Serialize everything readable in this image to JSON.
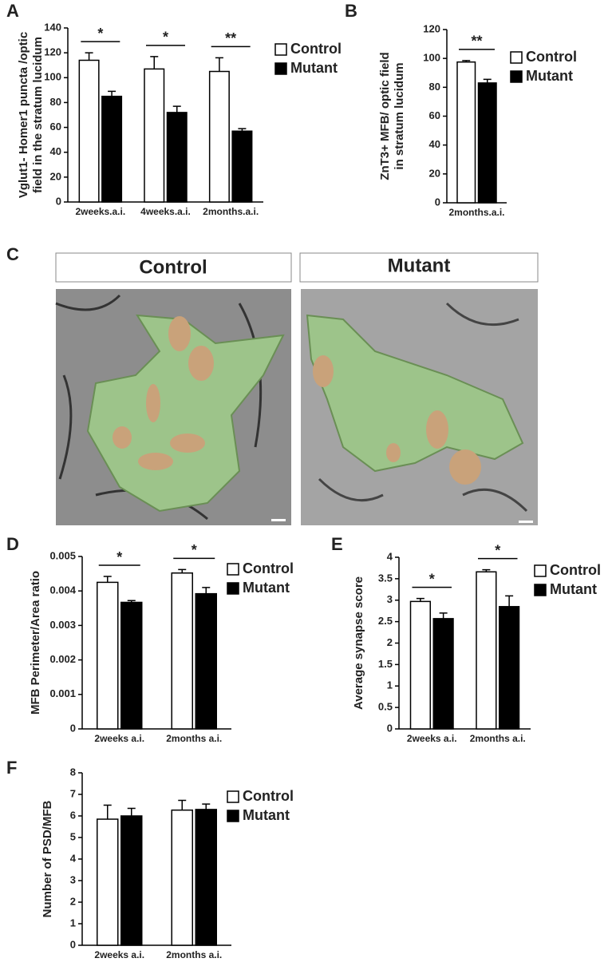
{
  "chart_data": [
    {
      "type": "bar",
      "panel": "A",
      "ylabel": [
        "Vglut1- Homer1 puncta /optic",
        "field  in the stratum lucidum"
      ],
      "categories": [
        "2weeks.a.i.",
        "4weeks.a.i.",
        "2months.a.i."
      ],
      "series": [
        {
          "name": "Control",
          "color": "#ffffff",
          "values": [
            114,
            107,
            105
          ],
          "errors": [
            6,
            10,
            11
          ]
        },
        {
          "name": "Mutant",
          "color": "#000000",
          "values": [
            85,
            72,
            57
          ],
          "errors": [
            4,
            5,
            2
          ]
        }
      ],
      "significance": [
        "*",
        "*",
        "**"
      ],
      "ylim": [
        0,
        140
      ],
      "yticks": [
        0,
        20,
        40,
        60,
        80,
        100,
        120,
        140
      ]
    },
    {
      "type": "bar",
      "panel": "B",
      "ylabel": [
        "ZnT3+ MFB/ optic field",
        "in stratum lucidum"
      ],
      "categories": [
        "2months.a.i."
      ],
      "series": [
        {
          "name": "Control",
          "color": "#ffffff",
          "values": [
            97.5
          ],
          "errors": [
            1
          ]
        },
        {
          "name": "Mutant",
          "color": "#000000",
          "values": [
            83
          ],
          "errors": [
            2.5
          ]
        }
      ],
      "significance": [
        "**"
      ],
      "ylim": [
        0,
        120
      ],
      "yticks": [
        0,
        20,
        40,
        60,
        80,
        100,
        120
      ]
    },
    {
      "type": "bar",
      "panel": "D",
      "ylabel": [
        "MFB Perimeter/Area ratio"
      ],
      "categories": [
        "2weeks a.i.",
        "2months a.i."
      ],
      "series": [
        {
          "name": "Control",
          "color": "#ffffff",
          "values": [
            0.00425,
            0.00452
          ],
          "errors": [
            0.00017,
            0.0001
          ]
        },
        {
          "name": "Mutant",
          "color": "#000000",
          "values": [
            0.00367,
            0.00392
          ],
          "errors": [
            5e-05,
            0.00018
          ]
        }
      ],
      "significance": [
        "*",
        "*"
      ],
      "ylim": [
        0,
        0.005
      ],
      "yticks": [
        0,
        0.001,
        0.002,
        0.003,
        0.004,
        0.005
      ]
    },
    {
      "type": "bar",
      "panel": "E",
      "ylabel": [
        "Average synapse score"
      ],
      "categories": [
        "2weeks a.i.",
        "2months a.i."
      ],
      "series": [
        {
          "name": "Control",
          "color": "#ffffff",
          "values": [
            2.97,
            3.66
          ],
          "errors": [
            0.07,
            0.05
          ]
        },
        {
          "name": "Mutant",
          "color": "#000000",
          "values": [
            2.57,
            2.85
          ],
          "errors": [
            0.13,
            0.25
          ]
        }
      ],
      "significance": [
        "*",
        "*"
      ],
      "ylim": [
        0,
        4
      ],
      "yticks": [
        0,
        0.5,
        1,
        1.5,
        2,
        2.5,
        3,
        3.5,
        4
      ]
    },
    {
      "type": "bar",
      "panel": "F",
      "ylabel": [
        "Number of PSD/MFB"
      ],
      "categories": [
        "2weeks a.i.",
        "2months a.i."
      ],
      "series": [
        {
          "name": "Control",
          "color": "#ffffff",
          "values": [
            5.85,
            6.27
          ],
          "errors": [
            0.65,
            0.45
          ]
        },
        {
          "name": "Mutant",
          "color": "#000000",
          "values": [
            6.0,
            6.3
          ],
          "errors": [
            0.35,
            0.25
          ]
        }
      ],
      "ylim": [
        0,
        8
      ],
      "yticks": [
        0,
        1,
        2,
        3,
        4,
        5,
        6,
        7,
        8
      ]
    }
  ],
  "micrographs": {
    "panel": "C",
    "labels": [
      "Control",
      "Mutant"
    ]
  }
}
